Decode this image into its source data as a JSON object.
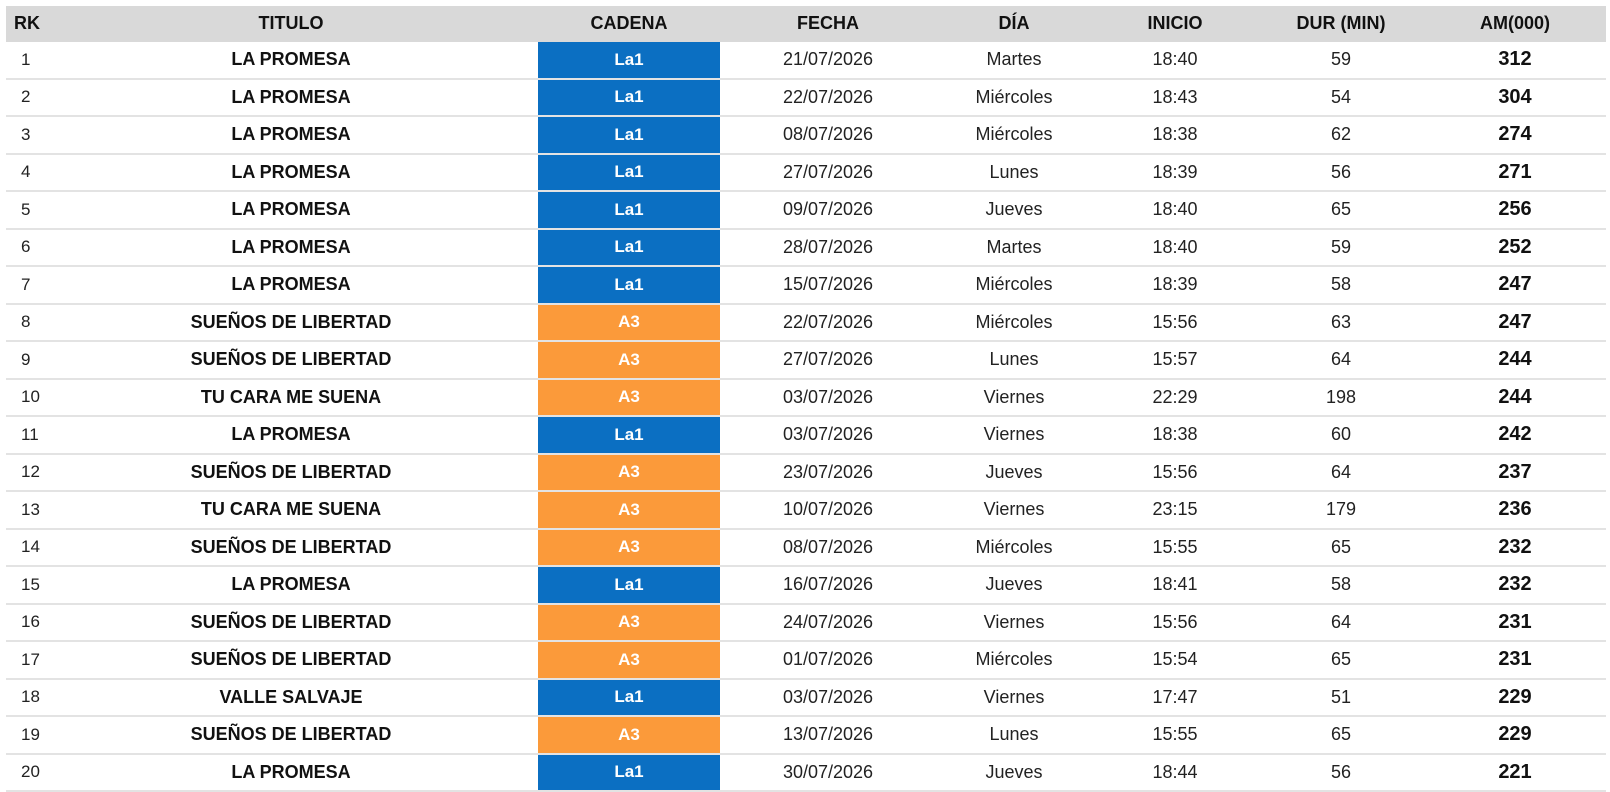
{
  "colors": {
    "La1": "#0b6fc2",
    "A3": "#fb9a3a",
    "header_bg": "#d9d9d9"
  },
  "headers": {
    "rk": "RK",
    "titulo": "TITULO",
    "cadena": "CADENA",
    "fecha": "FECHA",
    "dia": "DÍA",
    "inicio": "INICIO",
    "dur": "DUR (MIN)",
    "am": "AM(000)"
  },
  "rows": [
    {
      "rk": "1",
      "titulo": "LA PROMESA",
      "cadena": "La1",
      "fecha": "21/07/2026",
      "dia": "Martes",
      "inicio": "18:40",
      "dur": "59",
      "am": "312"
    },
    {
      "rk": "2",
      "titulo": "LA PROMESA",
      "cadena": "La1",
      "fecha": "22/07/2026",
      "dia": "Miércoles",
      "inicio": "18:43",
      "dur": "54",
      "am": "304"
    },
    {
      "rk": "3",
      "titulo": "LA PROMESA",
      "cadena": "La1",
      "fecha": "08/07/2026",
      "dia": "Miércoles",
      "inicio": "18:38",
      "dur": "62",
      "am": "274"
    },
    {
      "rk": "4",
      "titulo": "LA PROMESA",
      "cadena": "La1",
      "fecha": "27/07/2026",
      "dia": "Lunes",
      "inicio": "18:39",
      "dur": "56",
      "am": "271"
    },
    {
      "rk": "5",
      "titulo": "LA PROMESA",
      "cadena": "La1",
      "fecha": "09/07/2026",
      "dia": "Jueves",
      "inicio": "18:40",
      "dur": "65",
      "am": "256"
    },
    {
      "rk": "6",
      "titulo": "LA PROMESA",
      "cadena": "La1",
      "fecha": "28/07/2026",
      "dia": "Martes",
      "inicio": "18:40",
      "dur": "59",
      "am": "252"
    },
    {
      "rk": "7",
      "titulo": "LA PROMESA",
      "cadena": "La1",
      "fecha": "15/07/2026",
      "dia": "Miércoles",
      "inicio": "18:39",
      "dur": "58",
      "am": "247"
    },
    {
      "rk": "8",
      "titulo": "SUEÑOS DE LIBERTAD",
      "cadena": "A3",
      "fecha": "22/07/2026",
      "dia": "Miércoles",
      "inicio": "15:56",
      "dur": "63",
      "am": "247"
    },
    {
      "rk": "9",
      "titulo": "SUEÑOS DE LIBERTAD",
      "cadena": "A3",
      "fecha": "27/07/2026",
      "dia": "Lunes",
      "inicio": "15:57",
      "dur": "64",
      "am": "244"
    },
    {
      "rk": "10",
      "titulo": "TU CARA ME SUENA",
      "cadena": "A3",
      "fecha": "03/07/2026",
      "dia": "Viernes",
      "inicio": "22:29",
      "dur": "198",
      "am": "244"
    },
    {
      "rk": "11",
      "titulo": "LA PROMESA",
      "cadena": "La1",
      "fecha": "03/07/2026",
      "dia": "Viernes",
      "inicio": "18:38",
      "dur": "60",
      "am": "242"
    },
    {
      "rk": "12",
      "titulo": "SUEÑOS DE LIBERTAD",
      "cadena": "A3",
      "fecha": "23/07/2026",
      "dia": "Jueves",
      "inicio": "15:56",
      "dur": "64",
      "am": "237"
    },
    {
      "rk": "13",
      "titulo": "TU CARA ME SUENA",
      "cadena": "A3",
      "fecha": "10/07/2026",
      "dia": "Viernes",
      "inicio": "23:15",
      "dur": "179",
      "am": "236"
    },
    {
      "rk": "14",
      "titulo": "SUEÑOS DE LIBERTAD",
      "cadena": "A3",
      "fecha": "08/07/2026",
      "dia": "Miércoles",
      "inicio": "15:55",
      "dur": "65",
      "am": "232"
    },
    {
      "rk": "15",
      "titulo": "LA PROMESA",
      "cadena": "La1",
      "fecha": "16/07/2026",
      "dia": "Jueves",
      "inicio": "18:41",
      "dur": "58",
      "am": "232"
    },
    {
      "rk": "16",
      "titulo": "SUEÑOS DE LIBERTAD",
      "cadena": "A3",
      "fecha": "24/07/2026",
      "dia": "Viernes",
      "inicio": "15:56",
      "dur": "64",
      "am": "231"
    },
    {
      "rk": "17",
      "titulo": "SUEÑOS DE LIBERTAD",
      "cadena": "A3",
      "fecha": "01/07/2026",
      "dia": "Miércoles",
      "inicio": "15:54",
      "dur": "65",
      "am": "231"
    },
    {
      "rk": "18",
      "titulo": "VALLE SALVAJE",
      "cadena": "La1",
      "fecha": "03/07/2026",
      "dia": "Viernes",
      "inicio": "17:47",
      "dur": "51",
      "am": "229"
    },
    {
      "rk": "19",
      "titulo": "SUEÑOS DE LIBERTAD",
      "cadena": "A3",
      "fecha": "13/07/2026",
      "dia": "Lunes",
      "inicio": "15:55",
      "dur": "65",
      "am": "229"
    },
    {
      "rk": "20",
      "titulo": "LA PROMESA",
      "cadena": "La1",
      "fecha": "30/07/2026",
      "dia": "Jueves",
      "inicio": "18:44",
      "dur": "56",
      "am": "221"
    }
  ]
}
